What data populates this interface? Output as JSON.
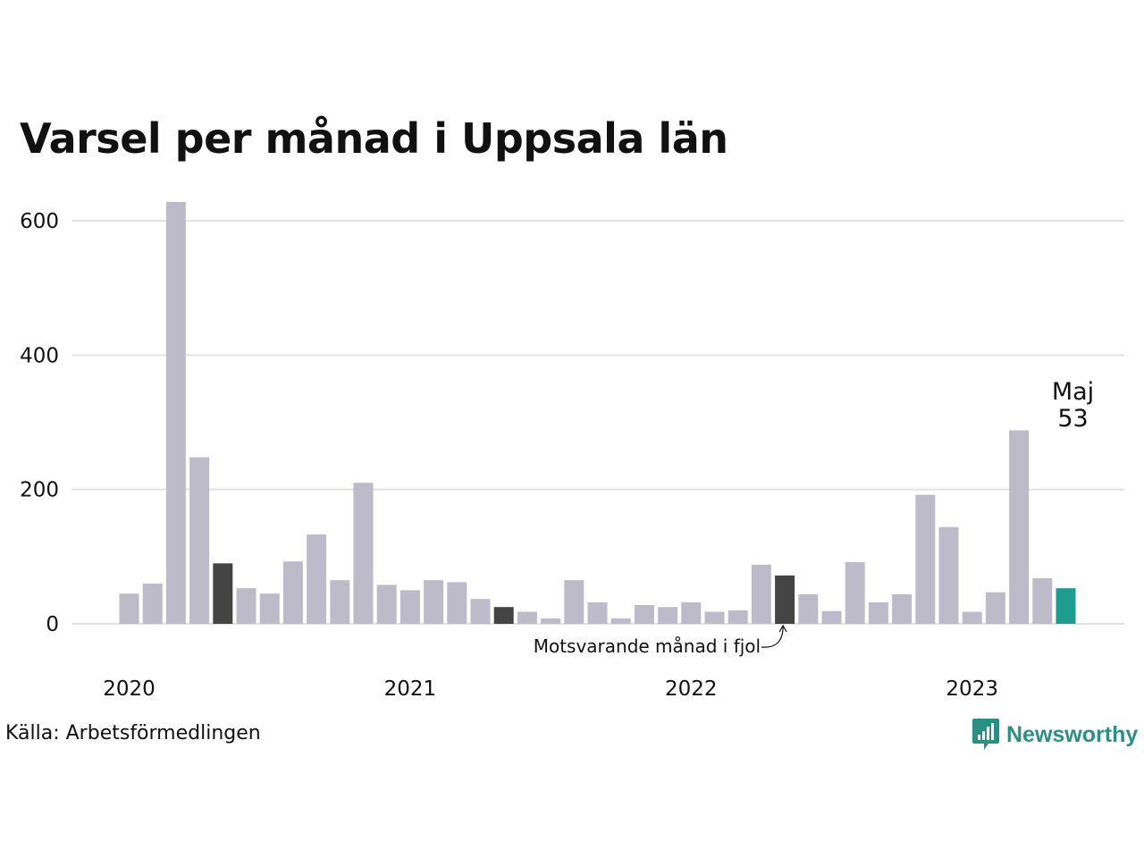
{
  "title": "Varsel per månad i Uppsala län",
  "source": "Källa: Arbetsförmedlingen",
  "brand": {
    "name": "Newsworthy",
    "icon": "bar-chart-speech-bubble-icon"
  },
  "colors": {
    "bar": "#bdbbca",
    "same_month_last_year": "#444444",
    "current": "#1f9b8f",
    "grid": "#e2e2e2",
    "brand": "#2a9083"
  },
  "chart_data": {
    "type": "bar",
    "title": "Varsel per månad i Uppsala län",
    "xlabel": "",
    "ylabel": "",
    "ylim": [
      0,
      630
    ],
    "yticks": [
      0,
      200,
      400,
      600
    ],
    "xticks": [
      {
        "label": "2020",
        "index": 0
      },
      {
        "label": "2021",
        "index": 12
      },
      {
        "label": "2022",
        "index": 24
      },
      {
        "label": "2023",
        "index": 36
      }
    ],
    "categories": [
      "2020-01",
      "2020-02",
      "2020-03",
      "2020-04",
      "2020-05",
      "2020-06",
      "2020-07",
      "2020-08",
      "2020-09",
      "2020-10",
      "2020-11",
      "2020-12",
      "2021-01",
      "2021-02",
      "2021-03",
      "2021-04",
      "2021-05",
      "2021-06",
      "2021-07",
      "2021-08",
      "2021-09",
      "2021-10",
      "2021-11",
      "2021-12",
      "2022-01",
      "2022-02",
      "2022-03",
      "2022-04",
      "2022-05",
      "2022-06",
      "2022-07",
      "2022-08",
      "2022-09",
      "2022-10",
      "2022-11",
      "2022-12",
      "2023-01",
      "2023-02",
      "2023-03",
      "2023-04",
      "2023-05"
    ],
    "values": [
      45,
      60,
      628,
      248,
      90,
      53,
      45,
      93,
      133,
      65,
      210,
      58,
      50,
      65,
      62,
      37,
      25,
      18,
      8,
      65,
      32,
      8,
      28,
      25,
      32,
      18,
      20,
      88,
      72,
      44,
      19,
      92,
      32,
      44,
      192,
      144,
      18,
      47,
      288,
      68,
      53
    ],
    "highlight_dark_indices": [
      4,
      16,
      28
    ],
    "current_index": 40,
    "grid": true,
    "legend": "none",
    "annotations": [
      {
        "text": "Motsvarande månad i fjol",
        "target_index": 28
      },
      {
        "label": "Maj",
        "value_text": "53",
        "target_index": 40
      }
    ]
  }
}
